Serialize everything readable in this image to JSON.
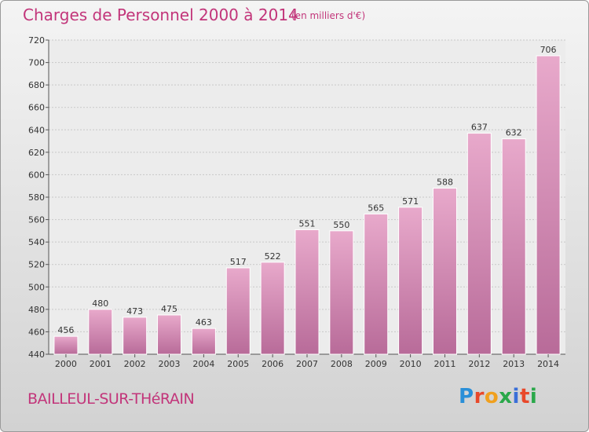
{
  "header": {
    "title": "Charges de Personnel 2000 à 2014",
    "subtitle": "(en milliers d'€)"
  },
  "footer": {
    "commune": "BAILLEUL-SUR-THéRAIN",
    "logo_letters": [
      "P",
      "r",
      "o",
      "x",
      "i",
      "t",
      "i"
    ]
  },
  "colors": {
    "title": "#c2357a",
    "bar_light": "#e8a9cb",
    "bar_dark": "#b86b99"
  },
  "chart_data": {
    "type": "bar",
    "title": "Charges de Personnel 2000 à 2014",
    "subtitle": "(en milliers d'€)",
    "categories": [
      "2000",
      "2001",
      "2002",
      "2003",
      "2004",
      "2005",
      "2006",
      "2007",
      "2008",
      "2009",
      "2010",
      "2011",
      "2012",
      "2013",
      "2014"
    ],
    "values": [
      456,
      480,
      473,
      475,
      463,
      517,
      522,
      551,
      550,
      565,
      571,
      588,
      637,
      632,
      706
    ],
    "ylim": [
      440,
      720
    ],
    "yticks": [
      440,
      460,
      480,
      500,
      520,
      540,
      560,
      580,
      600,
      620,
      640,
      660,
      680,
      700,
      720
    ],
    "grid": true,
    "data_labels": true
  }
}
